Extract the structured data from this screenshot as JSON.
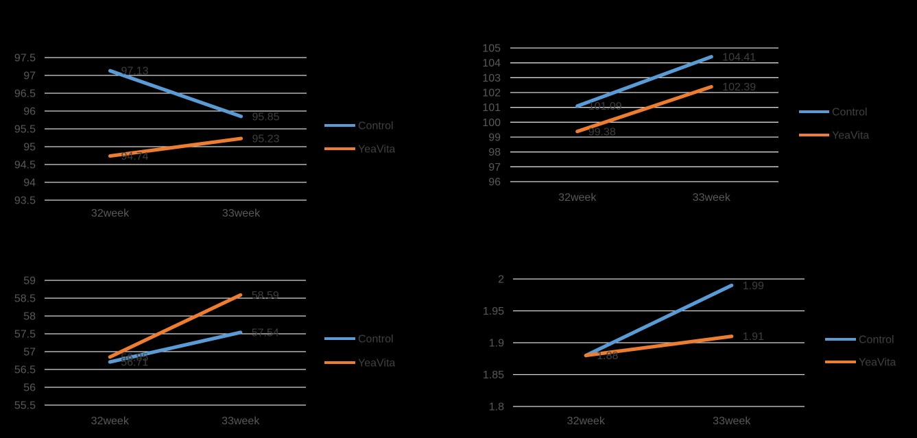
{
  "app": {
    "background": "#000000"
  },
  "colors": {
    "control": "#5B9BD5",
    "yeavita": "#ED7D31",
    "gridline": "#D9D9D9",
    "tick_text": "#595959",
    "category_text": "#595959",
    "data_label_text": "#3F3F3F",
    "legend_text": "#404040"
  },
  "chart_data": [
    {
      "id": "top-left",
      "type": "line",
      "categories": [
        "32week",
        "33week"
      ],
      "series": [
        {
          "name": "Control",
          "color": "#5B9BD5",
          "values": [
            97.13,
            95.85
          ],
          "labels": [
            "97.13",
            "95.85"
          ]
        },
        {
          "name": "YeaVita",
          "color": "#ED7D31",
          "values": [
            94.74,
            95.23
          ],
          "labels": [
            "94.74",
            "95.23"
          ]
        }
      ],
      "ylim": [
        93.5,
        97.5
      ],
      "ystep": 0.5,
      "yticks": [
        "97.5",
        "97",
        "96.5",
        "96",
        "95.5",
        "95",
        "94.5",
        "94",
        "93.5"
      ],
      "grid": true,
      "legend_position": "right",
      "legend_labels": [
        "Control",
        "YeaVita"
      ]
    },
    {
      "id": "top-right",
      "type": "line",
      "categories": [
        "32week",
        "33week"
      ],
      "series": [
        {
          "name": "Control",
          "color": "#5B9BD5",
          "values": [
            101.09,
            104.41
          ],
          "labels": [
            "101.09",
            "104.41"
          ]
        },
        {
          "name": "YeaVita",
          "color": "#ED7D31",
          "values": [
            99.38,
            102.39
          ],
          "labels": [
            "99.38",
            "102.39"
          ]
        }
      ],
      "ylim": [
        96,
        105
      ],
      "ystep": 1,
      "yticks": [
        "105",
        "104",
        "103",
        "102",
        "101",
        "100",
        "99",
        "98",
        "97",
        "96"
      ],
      "grid": true,
      "legend_position": "right",
      "legend_labels": [
        "Control",
        "YeaVita"
      ]
    },
    {
      "id": "bottom-left",
      "type": "line",
      "categories": [
        "32week",
        "33week"
      ],
      "series": [
        {
          "name": "Control",
          "color": "#5B9BD5",
          "values": [
            56.71,
            57.54
          ],
          "labels": [
            "56.71",
            "57.54"
          ]
        },
        {
          "name": "YeaVita",
          "color": "#ED7D31",
          "values": [
            56.85,
            58.59
          ],
          "labels": [
            "56.85",
            "58.59"
          ]
        }
      ],
      "ylim": [
        55.5,
        59
      ],
      "ystep": 0.5,
      "yticks": [
        "59",
        "58.5",
        "58",
        "57.5",
        "57",
        "56.5",
        "56",
        "55.5"
      ],
      "grid": true,
      "legend_position": "right",
      "legend_labels": [
        "Control",
        "YeaVita"
      ]
    },
    {
      "id": "bottom-right",
      "type": "line",
      "categories": [
        "32week",
        "33week"
      ],
      "series": [
        {
          "name": "Control",
          "color": "#5B9BD5",
          "values": [
            1.88,
            1.99
          ],
          "labels": [
            "1.88",
            "1.99"
          ]
        },
        {
          "name": "YeaVita",
          "color": "#ED7D31",
          "values": [
            1.88,
            1.91
          ],
          "labels": [
            "1.88",
            "1.91"
          ]
        }
      ],
      "ylim": [
        1.8,
        2
      ],
      "ystep": 0.05,
      "yticks": [
        "2",
        "1.95",
        "1.9",
        "1.85",
        "1.8"
      ],
      "grid": true,
      "legend_position": "right",
      "legend_labels": [
        "Control",
        "YeaVita"
      ]
    }
  ]
}
